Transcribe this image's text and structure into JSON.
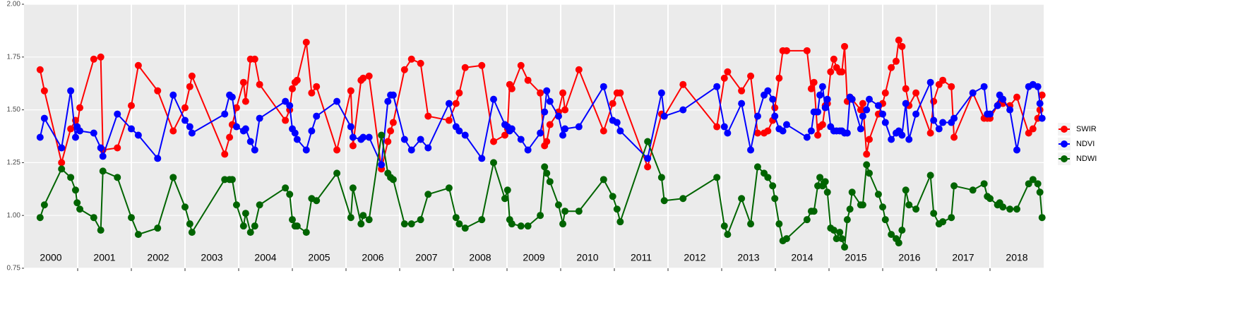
{
  "chart_data": {
    "type": "line",
    "x": [
      2000.3,
      2000.38,
      2000.7,
      2000.87,
      2000.96,
      2000.99,
      2001.04,
      2001.3,
      2001.43,
      2001.47,
      2001.74,
      2002.0,
      2002.13,
      2002.49,
      2002.78,
      2003.0,
      2003.09,
      2003.13,
      2003.74,
      2003.83,
      2003.88,
      2003.96,
      2004.09,
      2004.13,
      2004.22,
      2004.3,
      2004.39,
      2004.87,
      2004.95,
      2005.0,
      2005.05,
      2005.09,
      2005.26,
      2005.36,
      2005.45,
      2005.83,
      2006.09,
      2006.13,
      2006.28,
      2006.32,
      2006.43,
      2006.66,
      2006.78,
      2006.83,
      2006.88,
      2007.09,
      2007.22,
      2007.39,
      2007.53,
      2007.92,
      2008.05,
      2008.11,
      2008.22,
      2008.53,
      2008.75,
      2008.96,
      2009.01,
      2009.05,
      2009.09,
      2009.26,
      2009.39,
      2009.62,
      2009.7,
      2009.74,
      2009.8,
      2009.96,
      2010.04,
      2010.08,
      2010.34,
      2010.8,
      2010.97,
      2011.05,
      2011.11,
      2011.62,
      2011.88,
      2011.93,
      2012.28,
      2012.91,
      2013.05,
      2013.11,
      2013.37,
      2013.54,
      2013.67,
      2013.79,
      2013.86,
      2013.95,
      2013.99,
      2014.07,
      2014.14,
      2014.21,
      2014.59,
      2014.67,
      2014.72,
      2014.79,
      2014.83,
      2014.88,
      2014.93,
      2014.97,
      2015.03,
      2015.09,
      2015.14,
      2015.2,
      2015.24,
      2015.29,
      2015.34,
      2015.39,
      2015.43,
      2015.59,
      2015.63,
      2015.7,
      2015.75,
      2015.92,
      2016.0,
      2016.05,
      2016.16,
      2016.25,
      2016.3,
      2016.36,
      2016.43,
      2016.49,
      2016.62,
      2016.89,
      2016.95,
      2017.05,
      2017.12,
      2017.28,
      2017.33,
      2017.68,
      2017.89,
      2017.95,
      2018.0,
      2018.14,
      2018.18,
      2018.24,
      2018.37,
      2018.5,
      2018.72,
      2018.8,
      2018.89,
      2018.93,
      2018.97
    ],
    "series": [
      {
        "name": "SWIR",
        "color": "#ff0000",
        "values": [
          1.69,
          1.59,
          1.25,
          1.41,
          1.45,
          1.42,
          1.51,
          1.74,
          1.75,
          1.31,
          1.32,
          1.52,
          1.71,
          1.59,
          1.4,
          1.51,
          1.61,
          1.66,
          1.29,
          1.37,
          1.43,
          1.51,
          1.63,
          1.54,
          1.74,
          1.74,
          1.62,
          1.45,
          1.5,
          1.6,
          1.63,
          1.64,
          1.82,
          1.58,
          1.61,
          1.31,
          1.59,
          1.33,
          1.64,
          1.65,
          1.66,
          1.22,
          1.35,
          1.4,
          1.44,
          1.69,
          1.74,
          1.72,
          1.47,
          1.45,
          1.53,
          1.58,
          1.7,
          1.71,
          1.35,
          1.38,
          1.41,
          1.62,
          1.6,
          1.71,
          1.64,
          1.58,
          1.33,
          1.35,
          1.43,
          1.49,
          1.58,
          1.5,
          1.69,
          1.4,
          1.53,
          1.58,
          1.58,
          1.23,
          1.48,
          1.47,
          1.62,
          1.42,
          1.65,
          1.68,
          1.59,
          1.66,
          1.39,
          1.39,
          1.4,
          1.45,
          1.51,
          1.65,
          1.78,
          1.78,
          1.78,
          1.6,
          1.63,
          1.38,
          1.42,
          1.43,
          1.52,
          1.53,
          1.68,
          1.74,
          1.7,
          1.68,
          1.68,
          1.8,
          1.54,
          1.56,
          1.55,
          1.5,
          1.53,
          1.29,
          1.36,
          1.48,
          1.53,
          1.58,
          1.7,
          1.73,
          1.83,
          1.8,
          1.6,
          1.52,
          1.58,
          1.39,
          1.54,
          1.62,
          1.64,
          1.61,
          1.37,
          1.58,
          1.46,
          1.46,
          1.46,
          1.52,
          1.53,
          1.53,
          1.52,
          1.56,
          1.39,
          1.41,
          1.46,
          1.5,
          1.57
        ]
      },
      {
        "name": "NDVI",
        "color": "#0000ff",
        "values": [
          1.37,
          1.46,
          1.32,
          1.59,
          1.37,
          1.42,
          1.4,
          1.39,
          1.32,
          1.28,
          1.48,
          1.41,
          1.38,
          1.27,
          1.57,
          1.45,
          1.42,
          1.39,
          1.48,
          1.57,
          1.56,
          1.42,
          1.4,
          1.41,
          1.35,
          1.31,
          1.46,
          1.54,
          1.52,
          1.41,
          1.39,
          1.36,
          1.31,
          1.4,
          1.47,
          1.54,
          1.42,
          1.37,
          1.36,
          1.37,
          1.37,
          1.24,
          1.54,
          1.57,
          1.57,
          1.36,
          1.31,
          1.36,
          1.32,
          1.53,
          1.42,
          1.4,
          1.38,
          1.27,
          1.55,
          1.43,
          1.42,
          1.4,
          1.41,
          1.36,
          1.31,
          1.39,
          1.49,
          1.59,
          1.54,
          1.47,
          1.38,
          1.41,
          1.42,
          1.61,
          1.45,
          1.44,
          1.4,
          1.27,
          1.58,
          1.47,
          1.5,
          1.61,
          1.42,
          1.39,
          1.53,
          1.31,
          1.47,
          1.57,
          1.59,
          1.55,
          1.47,
          1.41,
          1.4,
          1.43,
          1.37,
          1.4,
          1.49,
          1.49,
          1.57,
          1.61,
          1.51,
          1.55,
          1.42,
          1.4,
          1.4,
          1.4,
          1.4,
          1.39,
          1.39,
          1.56,
          1.55,
          1.41,
          1.47,
          1.5,
          1.55,
          1.52,
          1.48,
          1.44,
          1.36,
          1.39,
          1.4,
          1.38,
          1.53,
          1.36,
          1.48,
          1.63,
          1.45,
          1.41,
          1.44,
          1.44,
          1.46,
          1.58,
          1.61,
          1.48,
          1.48,
          1.52,
          1.57,
          1.55,
          1.5,
          1.31,
          1.61,
          1.62,
          1.61,
          1.53,
          1.46
        ]
      },
      {
        "name": "NDWI",
        "color": "#006400",
        "values": [
          0.99,
          1.05,
          1.22,
          1.18,
          1.12,
          1.06,
          1.03,
          0.99,
          0.93,
          1.21,
          1.18,
          0.99,
          0.91,
          0.94,
          1.18,
          1.04,
          0.96,
          0.92,
          1.17,
          1.17,
          1.17,
          1.05,
          0.95,
          1.01,
          0.92,
          0.95,
          1.05,
          1.13,
          1.1,
          0.98,
          0.95,
          0.95,
          0.92,
          1.08,
          1.07,
          1.2,
          0.99,
          1.13,
          0.96,
          1.0,
          0.98,
          1.38,
          1.2,
          1.18,
          1.17,
          0.96,
          0.96,
          0.98,
          1.1,
          1.13,
          0.99,
          0.96,
          0.94,
          0.98,
          1.25,
          1.08,
          1.12,
          0.98,
          0.96,
          0.95,
          0.95,
          1.0,
          1.23,
          1.2,
          1.16,
          1.05,
          0.96,
          1.02,
          1.02,
          1.17,
          1.09,
          1.03,
          0.97,
          1.35,
          1.18,
          1.07,
          1.08,
          1.18,
          0.95,
          0.91,
          1.08,
          0.96,
          1.23,
          1.2,
          1.18,
          1.14,
          1.08,
          0.96,
          0.88,
          0.89,
          0.98,
          1.02,
          1.02,
          1.14,
          1.18,
          1.14,
          1.16,
          1.11,
          0.94,
          0.93,
          0.89,
          0.92,
          0.89,
          0.85,
          0.98,
          1.03,
          1.11,
          1.05,
          1.05,
          1.24,
          1.2,
          1.1,
          1.04,
          0.98,
          0.91,
          0.89,
          0.87,
          0.93,
          1.12,
          1.05,
          1.03,
          1.19,
          1.01,
          0.96,
          0.97,
          0.99,
          1.14,
          1.12,
          1.15,
          1.09,
          1.08,
          1.05,
          1.06,
          1.04,
          1.03,
          1.03,
          1.15,
          1.17,
          1.15,
          1.11,
          0.99
        ]
      }
    ],
    "xlim": [
      2000,
      2019
    ],
    "xgrid": [
      2001,
      2002,
      2003,
      2004,
      2005,
      2006,
      2007,
      2008,
      2009,
      2010,
      2011,
      2012,
      2013,
      2014,
      2015,
      2016,
      2017,
      2018
    ],
    "year_labels": [
      {
        "text": "2000",
        "x": 2000.5
      },
      {
        "text": "2001",
        "x": 2001.5
      },
      {
        "text": "2002",
        "x": 2002.5
      },
      {
        "text": "2003",
        "x": 2003.5
      },
      {
        "text": "2004",
        "x": 2004.5
      },
      {
        "text": "2005",
        "x": 2005.5
      },
      {
        "text": "2006",
        "x": 2006.5
      },
      {
        "text": "2007",
        "x": 2007.5
      },
      {
        "text": "2008",
        "x": 2008.5
      },
      {
        "text": "2009",
        "x": 2009.5
      },
      {
        "text": "2010",
        "x": 2010.5
      },
      {
        "text": "2011",
        "x": 2011.5
      },
      {
        "text": "2012",
        "x": 2012.5
      },
      {
        "text": "2013",
        "x": 2013.5
      },
      {
        "text": "2014",
        "x": 2014.5
      },
      {
        "text": "2015",
        "x": 2015.5
      },
      {
        "text": "2016",
        "x": 2016.5
      },
      {
        "text": "2017",
        "x": 2017.5
      },
      {
        "text": "2018",
        "x": 2018.5
      }
    ],
    "ylim": [
      0.75,
      2.0
    ],
    "yticks": [
      {
        "value": 0.75,
        "label": "0.75"
      },
      {
        "value": 1.0,
        "label": "1.00"
      },
      {
        "value": 1.25,
        "label": "1.25"
      },
      {
        "value": 1.5,
        "label": "1.50"
      },
      {
        "value": 1.75,
        "label": "1.75"
      },
      {
        "value": 2.0,
        "label": "2.00"
      }
    ],
    "grid": true,
    "legend": "right"
  }
}
